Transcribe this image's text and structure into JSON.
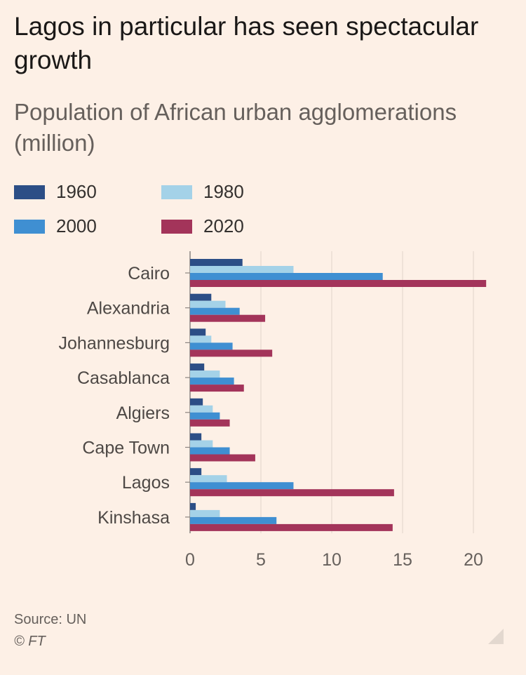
{
  "header": {
    "title": "Lagos in particular has seen spectacular growth",
    "subtitle": "Population of African urban agglomerations (million)"
  },
  "footer": {
    "source": "Source: UN",
    "credit": "© FT"
  },
  "colors": {
    "background": "#fdf0e6",
    "s1960": "#2c4e86",
    "s1980": "#a4d2e8",
    "s2000": "#3f8fd2",
    "s2020": "#a3345a",
    "grid": "#e6d9ce",
    "tick": "#66605c"
  },
  "chart_data": {
    "type": "bar",
    "orientation": "horizontal",
    "title": "Lagos in particular has seen spectacular growth",
    "subtitle": "Population of African urban agglomerations (million)",
    "xlabel": "",
    "ylabel": "",
    "xlim": [
      0,
      21
    ],
    "xticks": [
      0,
      5,
      10,
      15,
      20
    ],
    "grid": true,
    "legend_position": "top-left",
    "categories": [
      "Cairo",
      "Alexandria",
      "Johannesburg",
      "Casablanca",
      "Algiers",
      "Cape Town",
      "Lagos",
      "Kinshasa"
    ],
    "series": [
      {
        "name": "1960",
        "color": "#2c4e86",
        "values": [
          3.7,
          1.5,
          1.1,
          1.0,
          0.9,
          0.8,
          0.8,
          0.4
        ]
      },
      {
        "name": "1980",
        "color": "#a4d2e8",
        "values": [
          7.3,
          2.5,
          1.5,
          2.1,
          1.6,
          1.6,
          2.6,
          2.1
        ]
      },
      {
        "name": "2000",
        "color": "#3f8fd2",
        "values": [
          13.6,
          3.5,
          3.0,
          3.1,
          2.1,
          2.8,
          7.3,
          6.1
        ]
      },
      {
        "name": "2020",
        "color": "#a3345a",
        "values": [
          20.9,
          5.3,
          5.8,
          3.8,
          2.8,
          4.6,
          14.4,
          14.3
        ]
      }
    ]
  }
}
